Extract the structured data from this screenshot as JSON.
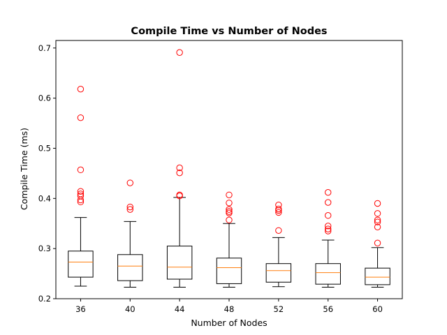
{
  "chart_data": {
    "type": "box",
    "title": "Compile Time vs Number of Nodes",
    "xlabel": "Number of Nodes",
    "ylabel": "Compile Time (ms)",
    "ylim": [
      0.2,
      0.715
    ],
    "yticks": [
      0.2,
      0.3,
      0.4,
      0.5,
      0.6,
      0.7
    ],
    "grid": false,
    "colors": {
      "box": "#000000",
      "median": "#ff7f0e",
      "outlier": "#ff0000"
    },
    "categories": [
      "36",
      "40",
      "44",
      "48",
      "52",
      "56",
      "60"
    ],
    "boxes": [
      {
        "category": "36",
        "whisker_low": 0.225,
        "q1": 0.243,
        "median": 0.273,
        "q3": 0.295,
        "whisker_high": 0.362,
        "outliers": [
          0.618,
          0.561,
          0.457,
          0.414,
          0.409,
          0.405,
          0.397,
          0.393
        ]
      },
      {
        "category": "40",
        "whisker_low": 0.223,
        "q1": 0.236,
        "median": 0.265,
        "q3": 0.288,
        "whisker_high": 0.354,
        "outliers": [
          0.431,
          0.383,
          0.378
        ]
      },
      {
        "category": "44",
        "whisker_low": 0.223,
        "q1": 0.239,
        "median": 0.263,
        "q3": 0.305,
        "whisker_high": 0.402,
        "outliers": [
          0.691,
          0.461,
          0.451,
          0.407,
          0.405
        ]
      },
      {
        "category": "48",
        "whisker_low": 0.223,
        "q1": 0.23,
        "median": 0.262,
        "q3": 0.281,
        "whisker_high": 0.35,
        "outliers": [
          0.407,
          0.391,
          0.378,
          0.374,
          0.371,
          0.357
        ]
      },
      {
        "category": "52",
        "whisker_low": 0.224,
        "q1": 0.233,
        "median": 0.256,
        "q3": 0.27,
        "whisker_high": 0.322,
        "outliers": [
          0.387,
          0.379,
          0.376,
          0.372,
          0.336
        ]
      },
      {
        "category": "56",
        "whisker_low": 0.223,
        "q1": 0.229,
        "median": 0.252,
        "q3": 0.27,
        "whisker_high": 0.317,
        "outliers": [
          0.412,
          0.392,
          0.366,
          0.345,
          0.339,
          0.335
        ]
      },
      {
        "category": "60",
        "whisker_low": 0.223,
        "q1": 0.228,
        "median": 0.243,
        "q3": 0.261,
        "whisker_high": 0.302,
        "outliers": [
          0.39,
          0.37,
          0.357,
          0.353,
          0.343,
          0.311
        ]
      }
    ]
  }
}
